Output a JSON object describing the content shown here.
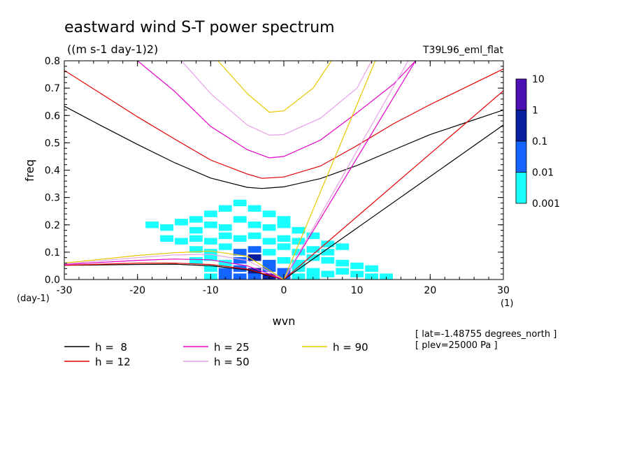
{
  "chart_data": {
    "type": "line",
    "title": "eastward wind S-T power spectrum",
    "subtitle": "((m s-1 day-1)2)",
    "run_label": "T39L96_eml_flat",
    "xlabel": "wvn",
    "ylabel": "freq",
    "x_unit": "(1)",
    "y_unit": "(day-1)",
    "xlim": [
      -30,
      30
    ],
    "ylim": [
      0,
      0.8
    ],
    "xticks": [
      -30,
      -20,
      -10,
      0,
      10,
      20,
      30
    ],
    "xtick_labels": [
      "-30",
      "-20",
      "-10",
      "0",
      "10",
      "20",
      "30"
    ],
    "yticks": [
      0,
      0.1,
      0.2,
      0.3,
      0.4,
      0.5,
      0.6,
      0.7,
      0.8
    ],
    "ytick_labels": [
      "0.0",
      "0.1",
      "0.2",
      "0.3",
      "0.4",
      "0.5",
      "0.6",
      "0.7",
      "0.8"
    ],
    "colorbar": {
      "labels": [
        "10",
        "1",
        "0.1",
        "0.01",
        "0.001"
      ],
      "colors": [
        "#4b0fb4",
        "#0a1ea0",
        "#1464ff",
        "#19ffff"
      ]
    },
    "info_lines": [
      "[ lat=-1.48755 degrees_north ]",
      "[ plev=25000 Pa ]"
    ],
    "series": [
      {
        "name": "h =  8",
        "color": "#000000",
        "inertio_gravity": [
          [
            -30,
            0.634
          ],
          [
            -25,
            0.563
          ],
          [
            -20,
            0.494
          ],
          [
            -15,
            0.428
          ],
          [
            -10,
            0.371
          ],
          [
            -5,
            0.337
          ],
          [
            -3,
            0.333
          ],
          [
            0,
            0.339
          ],
          [
            5,
            0.369
          ],
          [
            10,
            0.417
          ],
          [
            15,
            0.474
          ],
          [
            20,
            0.53
          ],
          [
            25,
            0.575
          ],
          [
            30,
            0.62
          ]
        ],
        "rossby": [
          [
            -30,
            0.052
          ],
          [
            -20,
            0.055
          ],
          [
            -15,
            0.056
          ],
          [
            -10,
            0.05
          ],
          [
            -5,
            0.035
          ],
          [
            0,
            0.0
          ]
        ],
        "kelvin": [
          [
            0,
            0
          ],
          [
            30,
            0.565
          ]
        ]
      },
      {
        "name": "h = 12",
        "color": "#e60000",
        "inertio_gravity": [
          [
            -30,
            0.765
          ],
          [
            -25,
            0.68
          ],
          [
            -20,
            0.595
          ],
          [
            -15,
            0.515
          ],
          [
            -10,
            0.437
          ],
          [
            -5,
            0.386
          ],
          [
            -3,
            0.37
          ],
          [
            0,
            0.375
          ],
          [
            5,
            0.415
          ],
          [
            10,
            0.49
          ],
          [
            15,
            0.57
          ],
          [
            20,
            0.64
          ],
          [
            25,
            0.705
          ],
          [
            30,
            0.77
          ]
        ],
        "rossby": [
          [
            -30,
            0.052
          ],
          [
            -20,
            0.06
          ],
          [
            -15,
            0.06
          ],
          [
            -10,
            0.055
          ],
          [
            -5,
            0.038
          ],
          [
            0,
            0.0
          ]
        ],
        "kelvin": [
          [
            0,
            0
          ],
          [
            30,
            0.69
          ]
        ]
      },
      {
        "name": "h = 25",
        "color": "#e600c8",
        "inertio_gravity": [
          [
            -20,
            0.8
          ],
          [
            -15,
            0.69
          ],
          [
            -10,
            0.56
          ],
          [
            -5,
            0.475
          ],
          [
            -2,
            0.445
          ],
          [
            0,
            0.45
          ],
          [
            5,
            0.51
          ],
          [
            10,
            0.61
          ],
          [
            15,
            0.715
          ],
          [
            18,
            0.8
          ]
        ],
        "rossby": [
          [
            -30,
            0.055
          ],
          [
            -20,
            0.07
          ],
          [
            -15,
            0.075
          ],
          [
            -10,
            0.072
          ],
          [
            -5,
            0.05
          ],
          [
            0,
            0.0
          ]
        ],
        "kelvin": [
          [
            0,
            0
          ],
          [
            18,
            0.8
          ]
        ]
      },
      {
        "name": "h = 50",
        "color": "#e6a0e6",
        "inertio_gravity": [
          [
            -14,
            0.8
          ],
          [
            -10,
            0.68
          ],
          [
            -5,
            0.565
          ],
          [
            -2,
            0.528
          ],
          [
            0,
            0.53
          ],
          [
            5,
            0.59
          ],
          [
            10,
            0.7
          ],
          [
            12,
            0.8
          ]
        ],
        "rossby": [
          [
            -30,
            0.057
          ],
          [
            -20,
            0.08
          ],
          [
            -15,
            0.09
          ],
          [
            -10,
            0.092
          ],
          [
            -5,
            0.07
          ],
          [
            0,
            0.0
          ]
        ],
        "kelvin": [
          [
            0,
            0
          ],
          [
            17,
            0.8
          ]
        ]
      },
      {
        "name": "h = 90",
        "color": "#e6c800",
        "inertio_gravity": [
          [
            -9,
            0.8
          ],
          [
            -5,
            0.68
          ],
          [
            -2,
            0.612
          ],
          [
            0,
            0.617
          ],
          [
            4,
            0.7
          ],
          [
            6.5,
            0.8
          ]
        ],
        "rossby": [
          [
            -30,
            0.06
          ],
          [
            -20,
            0.088
          ],
          [
            -15,
            0.098
          ],
          [
            -10,
            0.104
          ],
          [
            -5,
            0.085
          ],
          [
            0,
            0.0
          ]
        ],
        "kelvin": [
          [
            0,
            0
          ],
          [
            12.5,
            0.8
          ]
        ]
      }
    ],
    "power_cells": [
      [
        -8,
        0.26,
        0.01
      ],
      [
        -6,
        0.28,
        0.001
      ],
      [
        -4,
        0.26,
        0.001
      ],
      [
        -12,
        0.22,
        0.001
      ],
      [
        -10,
        0.24,
        0.001
      ],
      [
        -2,
        0.24,
        0.001
      ],
      [
        0,
        0.22,
        0.001
      ],
      [
        -18,
        0.2,
        0.001
      ],
      [
        -16,
        0.19,
        0.001
      ],
      [
        -14,
        0.21,
        0.01
      ],
      [
        -12,
        0.18,
        0.01
      ],
      [
        -10,
        0.2,
        0.01
      ],
      [
        -8,
        0.19,
        0.01
      ],
      [
        -6,
        0.22,
        0.01
      ],
      [
        -4,
        0.2,
        0.01
      ],
      [
        -2,
        0.19,
        0.001
      ],
      [
        0,
        0.2,
        0.001
      ],
      [
        2,
        0.18,
        0.001
      ],
      [
        -16,
        0.15,
        0.001
      ],
      [
        -14,
        0.14,
        0.01
      ],
      [
        -12,
        0.15,
        0.01
      ],
      [
        -10,
        0.14,
        0.01
      ],
      [
        -8,
        0.16,
        0.01
      ],
      [
        -6,
        0.15,
        0.01
      ],
      [
        -4,
        0.16,
        0.01
      ],
      [
        -2,
        0.14,
        0.01
      ],
      [
        0,
        0.15,
        0.001
      ],
      [
        2,
        0.14,
        0.001
      ],
      [
        4,
        0.16,
        0.001
      ],
      [
        6,
        0.13,
        0.001
      ],
      [
        -12,
        0.11,
        0.01
      ],
      [
        -10,
        0.1,
        0.01
      ],
      [
        -8,
        0.12,
        0.01
      ],
      [
        -6,
        0.1,
        0.1
      ],
      [
        -4,
        0.11,
        0.1
      ],
      [
        -2,
        0.1,
        0.01
      ],
      [
        0,
        0.12,
        0.01
      ],
      [
        2,
        0.1,
        0.001
      ],
      [
        4,
        0.11,
        0.001
      ],
      [
        6,
        0.1,
        0.001
      ],
      [
        8,
        0.12,
        0.001
      ],
      [
        -12,
        0.07,
        0.01
      ],
      [
        -10,
        0.08,
        0.01
      ],
      [
        -8,
        0.06,
        0.01
      ],
      [
        -6,
        0.07,
        0.1
      ],
      [
        -4,
        0.08,
        1
      ],
      [
        -2,
        0.06,
        0.1
      ],
      [
        0,
        0.07,
        0.01
      ],
      [
        2,
        0.06,
        0.01
      ],
      [
        4,
        0.08,
        0.001
      ],
      [
        6,
        0.07,
        0.001
      ],
      [
        8,
        0.06,
        0.001
      ],
      [
        10,
        0.05,
        0.001
      ],
      [
        12,
        0.04,
        0.001
      ],
      [
        -10,
        0.04,
        0.01
      ],
      [
        -8,
        0.03,
        0.1
      ],
      [
        -6,
        0.04,
        0.1
      ],
      [
        -4,
        0.03,
        1
      ],
      [
        -2,
        0.04,
        0.1
      ],
      [
        0,
        0.03,
        0.1
      ],
      [
        2,
        0.04,
        0.01
      ],
      [
        4,
        0.03,
        0.01
      ],
      [
        6,
        0.02,
        0.001
      ],
      [
        8,
        0.03,
        0.001
      ],
      [
        10,
        0.02,
        0.001
      ],
      [
        12,
        0.01,
        0.001
      ],
      [
        14,
        0.01,
        0.001
      ],
      [
        -10,
        0.01,
        0.01
      ],
      [
        -8,
        0.01,
        0.1
      ],
      [
        -6,
        0.01,
        0.1
      ],
      [
        -4,
        0.01,
        0.1
      ],
      [
        -2,
        0.01,
        1
      ],
      [
        0,
        0.01,
        0.1
      ],
      [
        2,
        0.01,
        0.01
      ],
      [
        4,
        0.01,
        0.01
      ]
    ]
  }
}
